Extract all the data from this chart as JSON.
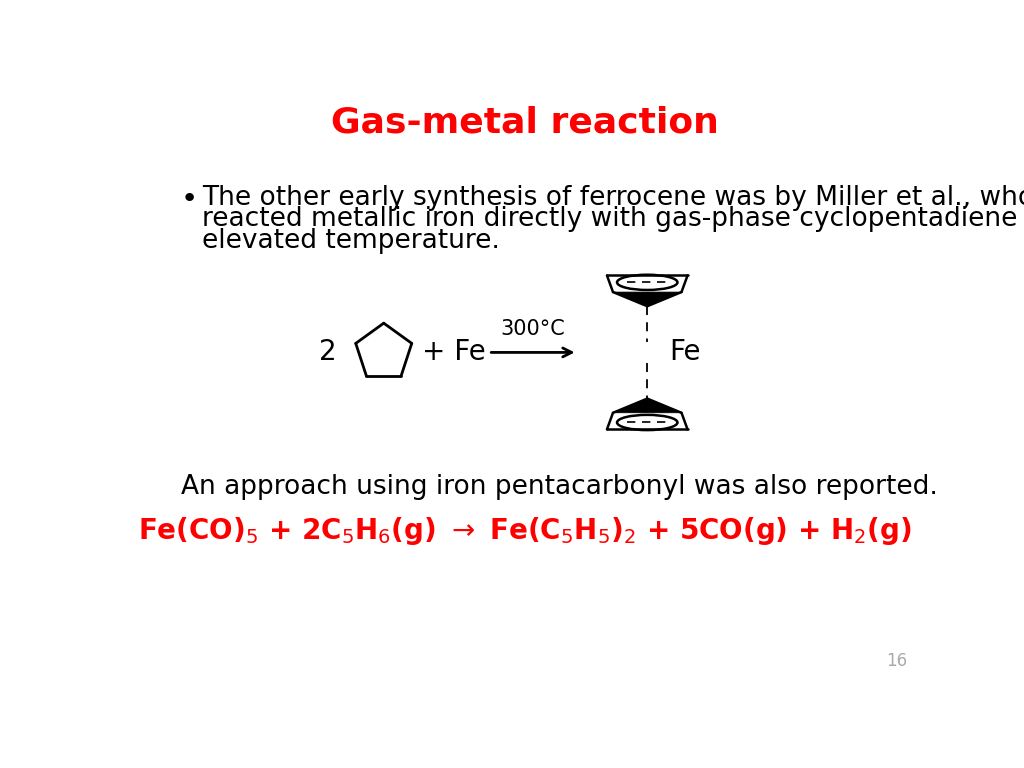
{
  "title": "Gas-metal reaction",
  "title_color": "#ff0000",
  "title_fontsize": 26,
  "bullet_text_line1": "The other early synthesis of ferrocene was by Miller et al., who",
  "bullet_text_line2": "reacted metallic iron directly with gas-phase cyclopentadiene at",
  "bullet_text_line3": "elevated temperature.",
  "bullet_fontsize": 19,
  "approach_text": "An approach using iron pentacarbonyl was also reported.",
  "approach_fontsize": 19,
  "equation_color": "#ff0000",
  "equation_fontsize": 20,
  "page_number": "16",
  "background_color": "#ffffff",
  "reaction_condition": "300°C"
}
